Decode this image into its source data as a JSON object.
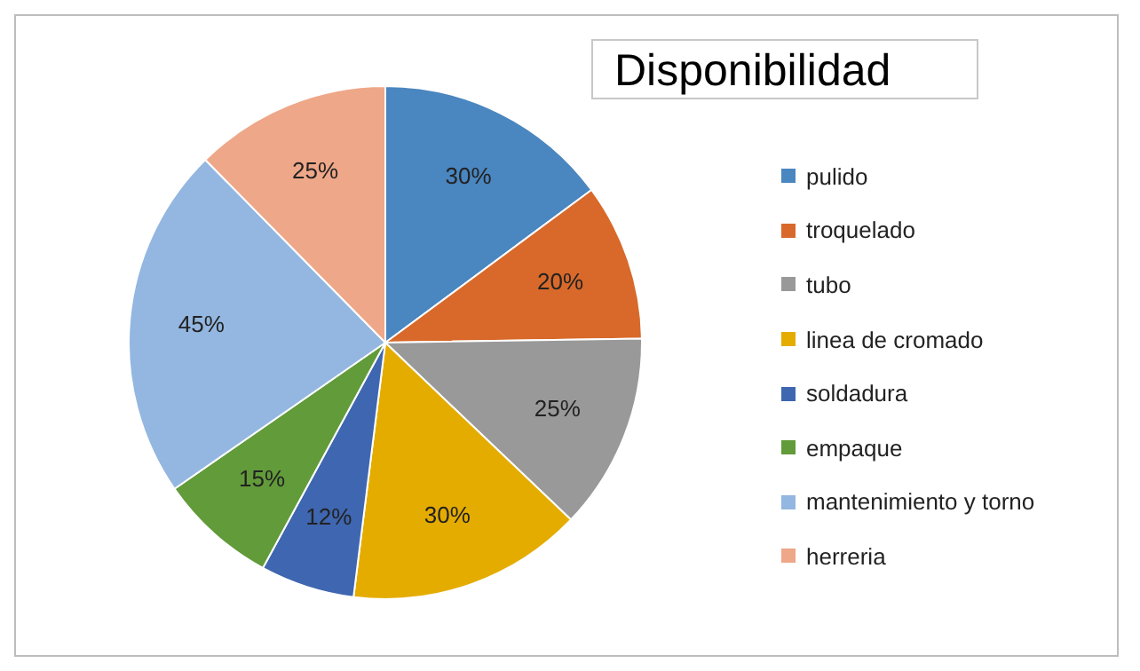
{
  "chart_data": {
    "type": "pie",
    "title": "Disponibilidad",
    "categories": [
      "pulido",
      "troquelado",
      "tubo",
      "linea de cromado",
      "soldadura",
      "empaque",
      "mantenimiento y torno",
      "herreria"
    ],
    "values": [
      30,
      20,
      25,
      30,
      12,
      15,
      45,
      25
    ],
    "value_labels": [
      "30%",
      "20%",
      "25%",
      "30%",
      "12%",
      "15%",
      "45%",
      "25%"
    ],
    "colors": [
      "#4a86c0",
      "#d8692a",
      "#999999",
      "#e5ac00",
      "#3f66b0",
      "#629b3a",
      "#93b7e0",
      "#eea788"
    ],
    "legend": "right"
  }
}
